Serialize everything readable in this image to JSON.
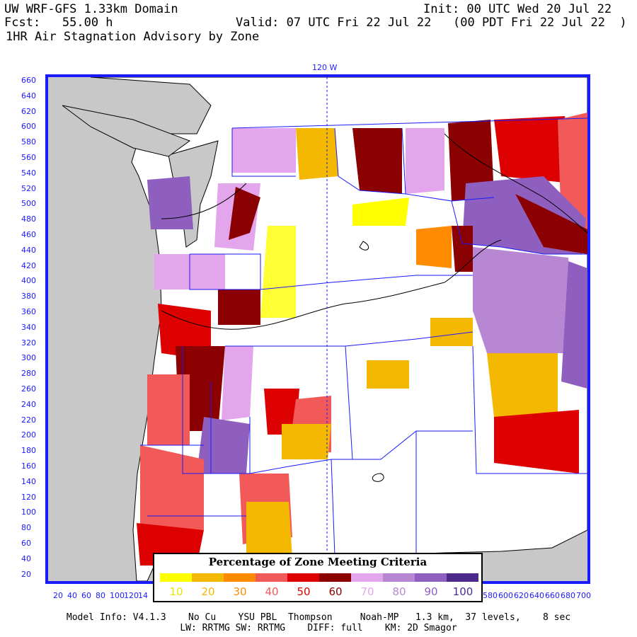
{
  "header": {
    "line1_left": "UW WRF-GFS 1.33km Domain",
    "line1_right": "Init: 00 UTC Wed 20 Jul 22",
    "line2_left": "Fcst:   55.00 h",
    "line2_mid": "Valid: 07 UTC Fri 22 Jul 22",
    "line2_right": "(00 PDT Fri 22 Jul 22  )",
    "line3": "1HR Air Stagnation Advisory by Zone"
  },
  "map": {
    "meridian_label": "120 W",
    "y_ticks": [
      "660",
      "640",
      "620",
      "600",
      "580",
      "560",
      "540",
      "520",
      "500",
      "480",
      "460",
      "440",
      "420",
      "400",
      "380",
      "360",
      "340",
      "320",
      "300",
      "280",
      "260",
      "240",
      "220",
      "200",
      "180",
      "160",
      "140",
      "120",
      "100",
      "80",
      "60",
      "40",
      "20"
    ],
    "x_ticks_left": [
      "20",
      "40",
      "60",
      "80",
      "100",
      "120",
      "14"
    ],
    "x_ticks_right": [
      "580",
      "600",
      "620",
      "640",
      "660",
      "680",
      "700"
    ],
    "colors": {
      "ocean": "#c8c8c8",
      "land": "#ffffff",
      "frame": "#1a1aff",
      "coast": "#000000",
      "zone_border": "#1a1aff"
    }
  },
  "legend": {
    "title": "Percentage of Zone Meeting Criteria",
    "items": [
      {
        "label": "10",
        "color": "#ffff00",
        "text_color": "#e6e600"
      },
      {
        "label": "20",
        "color": "#f5b800",
        "text_color": "#f5b800"
      },
      {
        "label": "30",
        "color": "#ff8c00",
        "text_color": "#ff8c00"
      },
      {
        "label": "40",
        "color": "#f25a5a",
        "text_color": "#f25a5a"
      },
      {
        "label": "50",
        "color": "#dd0000",
        "text_color": "#dd0000"
      },
      {
        "label": "60",
        "color": "#8b0000",
        "text_color": "#8b0000"
      },
      {
        "label": "70",
        "color": "#e3a6ec",
        "text_color": "#e3a6ec"
      },
      {
        "label": "80",
        "color": "#b887d4",
        "text_color": "#b887d4"
      },
      {
        "label": "90",
        "color": "#8f5fbf",
        "text_color": "#8f5fbf"
      },
      {
        "label": "100",
        "color": "#4b2a8a",
        "text_color": "#4b2a8a"
      }
    ]
  },
  "footer": {
    "line1": "Model Info: V4.1.3    No Cu    YSU PBL  Thompson     Noah-MP   1.3 km,  37 levels,    8 sec",
    "line2": "LW: RRTMG SW: RRTMG    DIFF: full    KM: 2D Smagor"
  }
}
